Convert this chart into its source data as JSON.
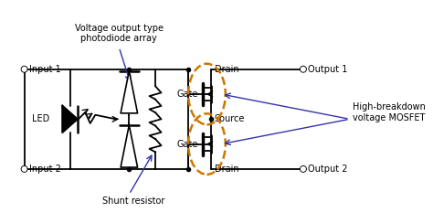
{
  "bg_color": "#ffffff",
  "line_color": "#000000",
  "blue_color": "#3333aa",
  "orange_color": "#cc7700",
  "labels": {
    "input1": "Input 1",
    "input2": "Input 2",
    "output1": "Output 1",
    "output2": "Output 2",
    "led": "LED",
    "gate1": "Gate",
    "gate2": "Gate",
    "drain1": "Drain",
    "drain2": "Drain",
    "source": "Source",
    "shunt": "Shunt resistor",
    "photodiode": "Voltage output type\nphotodiode array",
    "mosfet": "High-breakdown\nvoltage MOSFET"
  },
  "font_size": 7.0
}
